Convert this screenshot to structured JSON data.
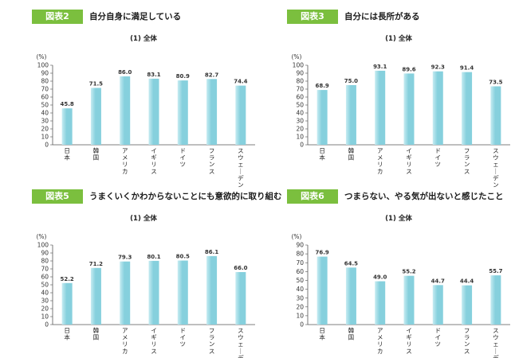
{
  "colors": {
    "badge": "#7bbf3e",
    "bar": "#86d0dd",
    "bar_highlight": "#c7ecf2",
    "axis": "#555555"
  },
  "chart_data": [
    {
      "type": "bar",
      "badge": "図表2",
      "title": "自分自身に満足している",
      "subtitle": "(1) 全体",
      "ylabel": "(%)",
      "ylim": [
        0,
        100
      ],
      "yticks": [
        "0",
        "10",
        "20",
        "30",
        "40",
        "50",
        "60",
        "70",
        "80",
        "90",
        "100"
      ],
      "categories": [
        "日本",
        "韓国",
        "アメリカ",
        "イギリス",
        "ドイツ",
        "フランス",
        "スウェーデン"
      ],
      "values": [
        45.8,
        71.5,
        86.0,
        83.1,
        80.9,
        82.7,
        74.4
      ],
      "value_labels": [
        "45.8",
        "71.5",
        "86.0",
        "83.1",
        "80.9",
        "82.7",
        "74.4"
      ]
    },
    {
      "type": "bar",
      "badge": "図表3",
      "title": "自分には長所がある",
      "subtitle": "(1) 全体",
      "ylabel": "(%)",
      "ylim": [
        0,
        100
      ],
      "yticks": [
        "0",
        "10",
        "20",
        "30",
        "40",
        "50",
        "60",
        "70",
        "80",
        "90",
        "100"
      ],
      "categories": [
        "日本",
        "韓国",
        "アメリカ",
        "イギリス",
        "ドイツ",
        "フランス",
        "スウェーデン"
      ],
      "values": [
        68.9,
        75.0,
        93.1,
        89.6,
        92.3,
        91.4,
        73.5
      ],
      "value_labels": [
        "68.9",
        "75.0",
        "93.1",
        "89.6",
        "92.3",
        "91.4",
        "73.5"
      ]
    },
    {
      "type": "bar",
      "badge": "図表5",
      "title": "うまくいくかわからないことにも意欲的に取り組む",
      "subtitle": "(1) 全体",
      "ylabel": "(%)",
      "ylim": [
        0,
        100
      ],
      "yticks": [
        "0",
        "10",
        "20",
        "30",
        "40",
        "50",
        "60",
        "70",
        "80",
        "90",
        "100"
      ],
      "categories": [
        "日本",
        "韓国",
        "アメリカ",
        "イギリス",
        "ドイツ",
        "フランス",
        "スウェーデン"
      ],
      "values": [
        52.2,
        71.2,
        79.3,
        80.1,
        80.5,
        86.1,
        66.0
      ],
      "value_labels": [
        "52.2",
        "71.2",
        "79.3",
        "80.1",
        "80.5",
        "86.1",
        "66.0"
      ]
    },
    {
      "type": "bar",
      "badge": "図表6",
      "title": "つまらない、やる気が出ないと感じたこと",
      "subtitle": "(1) 全体",
      "ylabel": "(%)",
      "ylim": [
        0,
        90
      ],
      "yticks": [
        "0",
        "10",
        "20",
        "30",
        "40",
        "50",
        "60",
        "70",
        "80",
        "90"
      ],
      "categories": [
        "日本",
        "韓国",
        "アメリカ",
        "イギリス",
        "ドイツ",
        "フランス",
        "スウェーデン"
      ],
      "values": [
        76.9,
        64.5,
        49.0,
        55.2,
        44.7,
        44.4,
        55.7
      ],
      "value_labels": [
        "76.9",
        "64.5",
        "49.0",
        "55.2",
        "44.7",
        "44.4",
        "55.7"
      ]
    }
  ]
}
